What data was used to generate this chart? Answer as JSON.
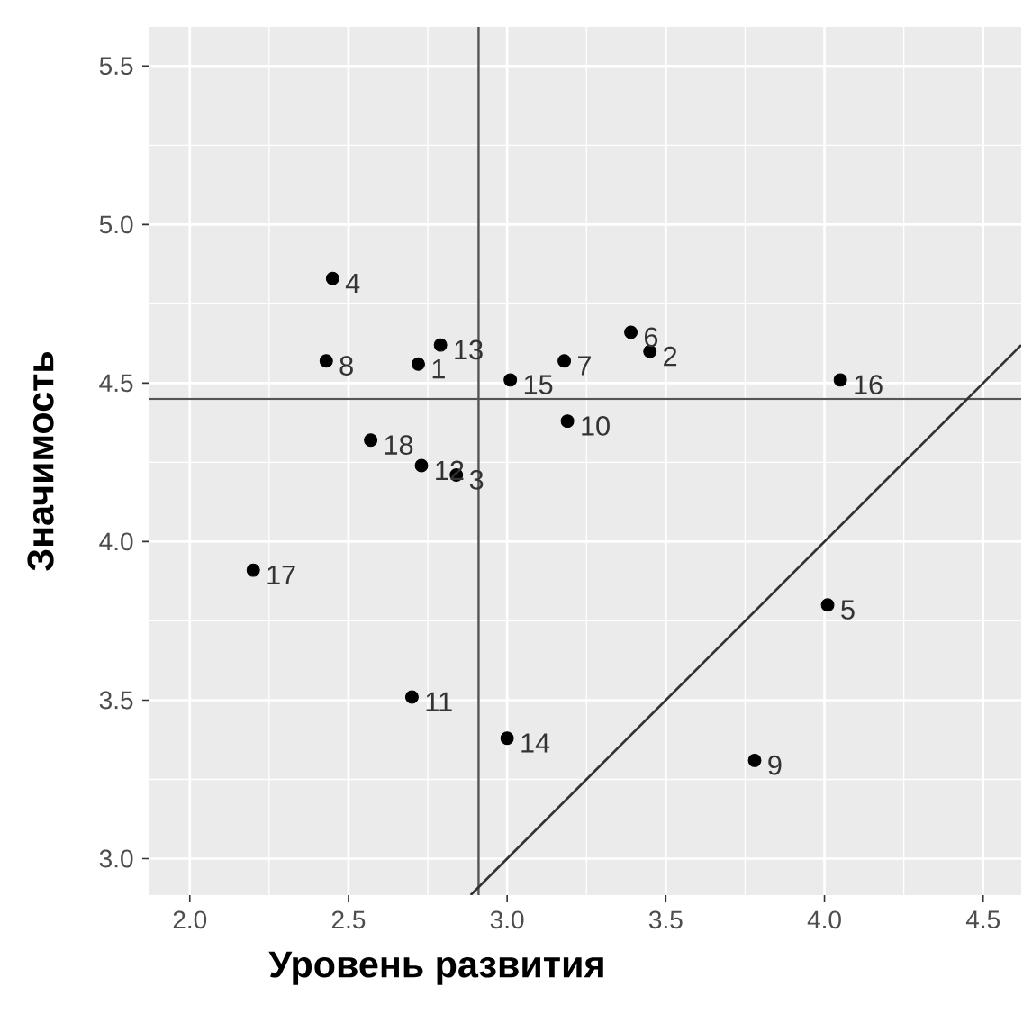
{
  "chart_data": {
    "type": "scatter",
    "xlabel": "Уровень развития",
    "ylabel": "Значимость",
    "series": [
      {
        "color": "#000000",
        "x": [
          2.72,
          3.45,
          2.84,
          2.45,
          4.01,
          3.39,
          3.18,
          2.43,
          3.78,
          3.19,
          2.7,
          2.73,
          2.79,
          3.0,
          3.01,
          4.05,
          2.2,
          2.57
        ],
        "values": [
          4.56,
          4.6,
          4.21,
          4.83,
          3.8,
          4.66,
          4.57,
          4.57,
          3.31,
          4.38,
          3.51,
          4.24,
          4.62,
          3.38,
          4.51,
          4.51,
          3.91,
          4.32
        ]
      },
      {
        "type": "line",
        "color": "#333333",
        "x": [
          2.885,
          4.62
        ],
        "values": [
          2.885,
          4.62
        ]
      }
    ],
    "annotations": [
      {
        "text": "1",
        "x": 2.72,
        "y": 4.56
      },
      {
        "text": "2",
        "x": 3.45,
        "y": 4.6
      },
      {
        "text": "3",
        "x": 2.84,
        "y": 4.21
      },
      {
        "text": "4",
        "x": 2.45,
        "y": 4.83
      },
      {
        "text": "5",
        "x": 4.01,
        "y": 3.8
      },
      {
        "text": "6",
        "x": 3.39,
        "y": 4.66
      },
      {
        "text": "7",
        "x": 3.18,
        "y": 4.57
      },
      {
        "text": "8",
        "x": 2.43,
        "y": 4.57
      },
      {
        "text": "9",
        "x": 3.78,
        "y": 3.31
      },
      {
        "text": "10",
        "x": 3.19,
        "y": 4.38
      },
      {
        "text": "11",
        "x": 2.7,
        "y": 3.51
      },
      {
        "text": "12",
        "x": 2.73,
        "y": 4.24
      },
      {
        "text": "13",
        "x": 2.79,
        "y": 4.62
      },
      {
        "text": "14",
        "x": 3.0,
        "y": 3.38
      },
      {
        "text": "15",
        "x": 3.01,
        "y": 4.51
      },
      {
        "text": "16",
        "x": 4.05,
        "y": 4.51
      },
      {
        "text": "17",
        "x": 2.2,
        "y": 3.91
      },
      {
        "text": "18",
        "x": 2.57,
        "y": 4.32
      }
    ],
    "ref_lines": [
      {
        "axis": "x",
        "value": 2.91,
        "color": "#555555"
      },
      {
        "axis": "y",
        "value": 4.45,
        "color": "#555555"
      }
    ],
    "xlim": [
      1.873,
      4.62
    ],
    "ylim": [
      2.885,
      5.623
    ],
    "xticks": [
      {
        "value": 2,
        "label": "2.0"
      },
      {
        "value": 2.5,
        "label": "2.5"
      },
      {
        "value": 3,
        "label": "3.0"
      },
      {
        "value": 3.5,
        "label": "3.5"
      },
      {
        "value": 4,
        "label": "4.0"
      },
      {
        "value": 4.5,
        "label": "4.5"
      }
    ],
    "yticks": [
      {
        "value": 3,
        "label": "3.0"
      },
      {
        "value": 3.5,
        "label": "3.5"
      },
      {
        "value": 4,
        "label": "4.0"
      },
      {
        "value": 4.5,
        "label": "4.5"
      },
      {
        "value": 5,
        "label": "5.0"
      },
      {
        "value": 5.5,
        "label": "5.5"
      }
    ],
    "grid": true
  }
}
